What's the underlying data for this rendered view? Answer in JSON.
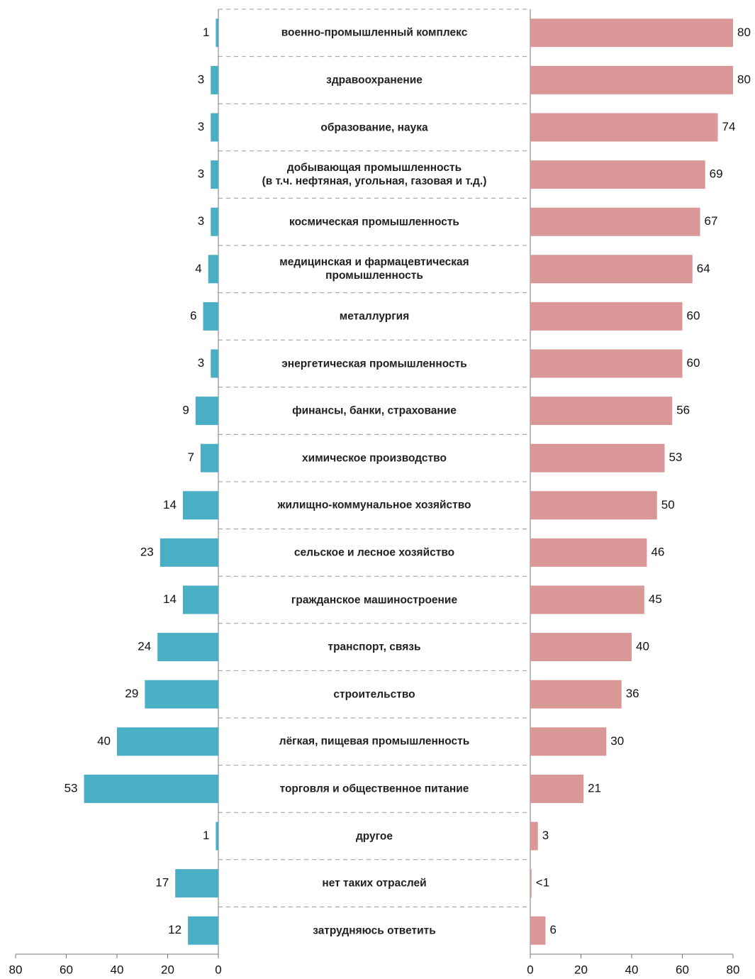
{
  "chart_data": {
    "type": "butterfly",
    "categories": [
      "военно-промышленный комплекс",
      "здравоохранение",
      "образование, наука",
      "добывающая промышленность\n(в т.ч. нефтяная, угольная, газовая и т.д.)",
      "космическая промышленность",
      "медицинская и фармацевтическая\nпромышленность",
      "металлургия",
      "энергетическая промышленность",
      "финансы, банки, страхование",
      "химическое производство",
      "жилищно-коммунальное хозяйство",
      "сельское и лесное хозяйство",
      "гражданское машиностроение",
      "транспорт, связь",
      "строительство",
      "лёгкая, пищевая промышленность",
      "торговля и общественное питание",
      "другое",
      "нет таких отраслей",
      "затрудняюсь ответить"
    ],
    "series": [
      {
        "side": "left",
        "color": "#4aaec5",
        "values": [
          1,
          3,
          3,
          3,
          3,
          4,
          6,
          3,
          9,
          7,
          14,
          23,
          14,
          24,
          29,
          40,
          53,
          1,
          17,
          12
        ]
      },
      {
        "side": "right",
        "color": "#d99797",
        "values": [
          80,
          80,
          74,
          69,
          67,
          64,
          60,
          60,
          56,
          53,
          50,
          46,
          45,
          40,
          36,
          30,
          21,
          3,
          0.5,
          6
        ],
        "value_labels": [
          "80",
          "80",
          "74",
          "69",
          "67",
          "64",
          "60",
          "60",
          "56",
          "53",
          "50",
          "46",
          "45",
          "40",
          "36",
          "30",
          "21",
          "3",
          "<1",
          "6"
        ]
      }
    ],
    "xlim": [
      0,
      80
    ],
    "xticks": [
      0,
      20,
      40,
      60,
      80
    ]
  }
}
